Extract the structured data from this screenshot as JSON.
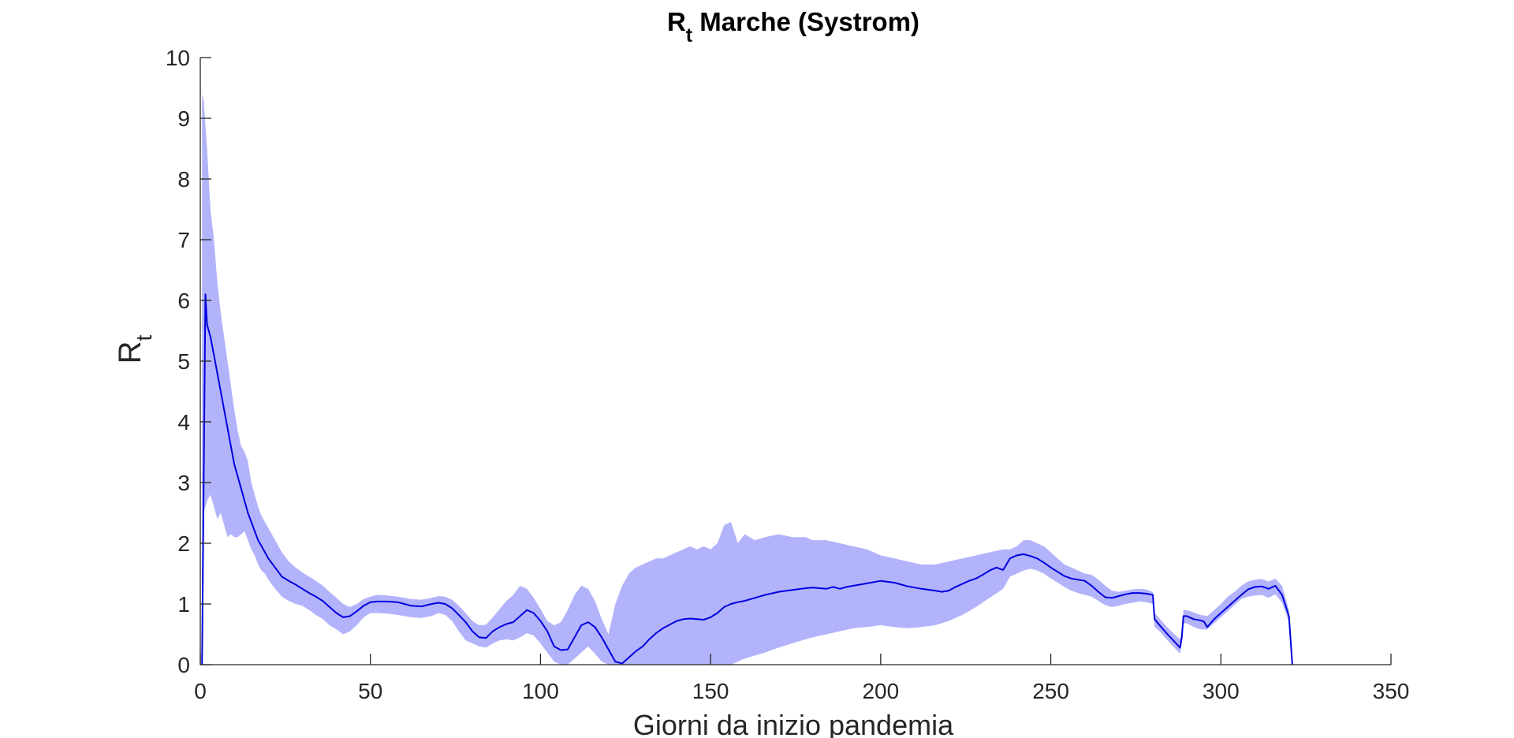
{
  "chart_data": {
    "type": "line",
    "title": {
      "main": "R",
      "sub": "t",
      "rest": " Marche (Systrom)"
    },
    "xlabel": "Giorni da inizio pandemia",
    "ylabel": {
      "main": "R",
      "sub": "t"
    },
    "xlim": [
      0,
      350
    ],
    "ylim": [
      0,
      10
    ],
    "x_ticks": [
      0,
      50,
      100,
      150,
      200,
      250,
      300,
      350
    ],
    "y_ticks": [
      0,
      1,
      2,
      3,
      4,
      5,
      6,
      7,
      8,
      9,
      10
    ],
    "grid": false,
    "colors": {
      "line": "#0000e0",
      "band": "#b3b3fb",
      "axis": "#262626"
    },
    "series": [
      {
        "x": [
          0.5,
          1.5,
          2,
          3,
          4,
          5,
          6,
          7,
          8,
          9,
          10,
          11,
          12,
          13,
          14,
          15,
          16,
          17,
          18,
          19,
          20,
          22,
          24,
          26,
          28,
          30,
          32,
          34,
          36,
          38,
          40,
          42,
          44,
          46,
          48,
          50,
          52,
          55,
          58,
          60,
          62,
          65,
          68,
          70,
          72,
          74,
          76,
          78,
          80,
          82,
          84,
          86,
          88,
          90,
          92,
          94,
          96,
          98,
          100,
          102,
          104,
          106,
          108,
          110,
          112,
          114,
          116,
          118,
          120,
          122,
          124,
          126,
          128,
          130,
          132,
          134,
          136,
          138,
          140,
          142,
          144,
          146,
          148,
          150,
          152,
          154,
          156,
          158,
          160,
          163,
          166,
          170,
          174,
          178,
          180,
          184,
          186,
          188,
          190,
          194,
          198,
          200,
          204,
          208,
          212,
          216,
          218,
          220,
          222,
          224,
          226,
          228,
          230,
          232,
          234,
          236,
          238,
          240,
          242,
          244,
          246,
          248,
          250,
          252,
          254,
          256,
          258,
          260,
          262,
          264,
          266,
          268,
          270,
          272,
          274,
          276,
          278,
          280,
          280.5,
          282,
          284,
          286,
          288,
          288.5,
          289,
          290,
          292,
          294,
          295,
          296,
          298,
          300,
          302,
          304,
          306,
          308,
          310,
          312,
          314,
          316,
          318,
          320,
          321
        ],
        "rt": [
          0,
          6.1,
          5.6,
          5.4,
          5.1,
          4.8,
          4.5,
          4.2,
          3.9,
          3.6,
          3.3,
          3.1,
          2.9,
          2.7,
          2.5,
          2.35,
          2.2,
          2.05,
          1.95,
          1.85,
          1.75,
          1.6,
          1.45,
          1.38,
          1.32,
          1.25,
          1.18,
          1.12,
          1.05,
          0.95,
          0.85,
          0.78,
          0.8,
          0.88,
          0.97,
          1.03,
          1.04,
          1.04,
          1.03,
          1.0,
          0.97,
          0.96,
          1.0,
          1.02,
          1.0,
          0.93,
          0.82,
          0.7,
          0.55,
          0.45,
          0.44,
          0.55,
          0.62,
          0.67,
          0.7,
          0.8,
          0.9,
          0.85,
          0.72,
          0.55,
          0.3,
          0.24,
          0.25,
          0.45,
          0.65,
          0.7,
          0.62,
          0.45,
          0.25,
          0.05,
          0.02,
          0.12,
          0.22,
          0.3,
          0.42,
          0.52,
          0.6,
          0.66,
          0.72,
          0.75,
          0.76,
          0.75,
          0.74,
          0.78,
          0.85,
          0.95,
          1.0,
          1.03,
          1.05,
          1.1,
          1.15,
          1.2,
          1.23,
          1.26,
          1.27,
          1.25,
          1.28,
          1.25,
          1.28,
          1.32,
          1.36,
          1.38,
          1.35,
          1.29,
          1.25,
          1.22,
          1.2,
          1.22,
          1.28,
          1.33,
          1.38,
          1.42,
          1.48,
          1.55,
          1.6,
          1.56,
          1.75,
          1.8,
          1.82,
          1.79,
          1.75,
          1.68,
          1.6,
          1.53,
          1.46,
          1.42,
          1.4,
          1.38,
          1.3,
          1.2,
          1.11,
          1.1,
          1.13,
          1.16,
          1.18,
          1.18,
          1.17,
          1.15,
          0.75,
          0.65,
          0.52,
          0.4,
          0.28,
          0.45,
          0.8,
          0.8,
          0.75,
          0.73,
          0.71,
          0.62,
          0.75,
          0.85,
          0.95,
          1.05,
          1.15,
          1.24,
          1.28,
          1.29,
          1.25,
          1.3,
          1.15,
          0.8,
          0
        ]
      }
    ],
    "band": {
      "x": [
        0.5,
        1,
        2,
        3,
        4,
        5,
        6,
        7,
        8,
        9,
        10,
        11,
        12,
        13,
        14,
        15,
        16,
        17,
        18,
        19,
        20,
        22,
        24,
        26,
        28,
        30,
        32,
        34,
        36,
        38,
        40,
        42,
        44,
        46,
        48,
        50,
        52,
        55,
        58,
        60,
        62,
        65,
        68,
        70,
        72,
        74,
        76,
        78,
        80,
        82,
        84,
        86,
        88,
        90,
        92,
        94,
        96,
        98,
        100,
        102,
        104,
        106,
        108,
        110,
        112,
        114,
        116,
        118,
        120,
        122,
        124,
        126,
        128,
        130,
        132,
        134,
        136,
        138,
        140,
        142,
        144,
        146,
        148,
        150,
        152,
        154,
        156,
        158,
        160,
        163,
        166,
        170,
        174,
        178,
        180,
        184,
        188,
        192,
        196,
        200,
        204,
        208,
        212,
        216,
        220,
        224,
        228,
        232,
        236,
        238,
        240,
        242,
        244,
        246,
        248,
        250,
        252,
        254,
        256,
        258,
        260,
        262,
        264,
        266,
        268,
        270,
        272,
        274,
        276,
        278,
        280,
        280.5,
        282,
        284,
        286,
        288,
        288.5,
        289,
        290,
        292,
        294,
        296,
        298,
        300,
        302,
        304,
        306,
        308,
        310,
        312,
        314,
        316,
        318,
        320,
        321
      ],
      "upper": [
        9.4,
        9.3,
        8.5,
        7.5,
        7.0,
        6.3,
        5.8,
        5.4,
        5.0,
        4.6,
        4.2,
        3.85,
        3.6,
        3.5,
        3.35,
        3.0,
        2.8,
        2.6,
        2.45,
        2.35,
        2.25,
        2.05,
        1.85,
        1.7,
        1.6,
        1.52,
        1.45,
        1.38,
        1.3,
        1.2,
        1.1,
        1.0,
        0.95,
        1.0,
        1.08,
        1.12,
        1.15,
        1.14,
        1.12,
        1.1,
        1.08,
        1.07,
        1.1,
        1.13,
        1.12,
        1.07,
        0.97,
        0.85,
        0.72,
        0.65,
        0.66,
        0.78,
        0.92,
        1.05,
        1.15,
        1.3,
        1.25,
        1.1,
        0.92,
        0.72,
        0.65,
        0.7,
        0.9,
        1.15,
        1.3,
        1.25,
        1.05,
        0.75,
        0.5,
        1.0,
        1.3,
        1.5,
        1.6,
        1.65,
        1.7,
        1.75,
        1.75,
        1.8,
        1.85,
        1.9,
        1.95,
        1.9,
        1.95,
        1.9,
        2.0,
        2.3,
        2.35,
        2.0,
        2.15,
        2.05,
        2.1,
        2.15,
        2.1,
        2.1,
        2.05,
        2.05,
        2.0,
        1.95,
        1.9,
        1.8,
        1.75,
        1.7,
        1.65,
        1.65,
        1.7,
        1.75,
        1.8,
        1.85,
        1.9,
        1.9,
        1.95,
        2.05,
        2.05,
        2.0,
        1.95,
        1.85,
        1.75,
        1.65,
        1.6,
        1.55,
        1.5,
        1.48,
        1.4,
        1.3,
        1.22,
        1.2,
        1.22,
        1.24,
        1.25,
        1.24,
        1.2,
        0.85,
        0.76,
        0.63,
        0.52,
        0.42,
        0.55,
        0.9,
        0.9,
        0.86,
        0.82,
        0.8,
        0.9,
        1.0,
        1.12,
        1.2,
        1.3,
        1.37,
        1.4,
        1.41,
        1.37,
        1.42,
        1.3,
        0.9,
        0
      ],
      "lower": [
        0,
        2.5,
        2.7,
        2.8,
        2.6,
        2.4,
        2.5,
        2.3,
        2.1,
        2.15,
        2.1,
        2.1,
        2.15,
        2.2,
        2.05,
        1.9,
        1.8,
        1.65,
        1.55,
        1.5,
        1.4,
        1.25,
        1.12,
        1.05,
        1.0,
        0.97,
        0.9,
        0.82,
        0.75,
        0.65,
        0.58,
        0.5,
        0.55,
        0.65,
        0.78,
        0.85,
        0.85,
        0.84,
        0.82,
        0.8,
        0.78,
        0.77,
        0.8,
        0.85,
        0.82,
        0.72,
        0.55,
        0.4,
        0.35,
        0.3,
        0.28,
        0.35,
        0.4,
        0.42,
        0.4,
        0.45,
        0.52,
        0.48,
        0.35,
        0.2,
        0.05,
        0.0,
        0.0,
        0.1,
        0.2,
        0.3,
        0.18,
        0.05,
        0.0,
        0.0,
        0.0,
        0.0,
        0.0,
        0.0,
        0.0,
        0.0,
        0.0,
        0.0,
        0.0,
        0.0,
        0.0,
        0.0,
        0.0,
        0.0,
        0.0,
        0.0,
        0.0,
        0.05,
        0.1,
        0.15,
        0.2,
        0.28,
        0.35,
        0.42,
        0.45,
        0.5,
        0.55,
        0.6,
        0.62,
        0.65,
        0.62,
        0.6,
        0.62,
        0.65,
        0.72,
        0.82,
        0.95,
        1.1,
        1.25,
        1.45,
        1.5,
        1.55,
        1.58,
        1.55,
        1.5,
        1.42,
        1.35,
        1.28,
        1.22,
        1.18,
        1.15,
        1.12,
        1.05,
        0.98,
        0.95,
        0.97,
        1.0,
        1.02,
        1.04,
        1.03,
        1.0,
        0.62,
        0.55,
        0.42,
        0.3,
        0.18,
        0.35,
        0.68,
        0.68,
        0.62,
        0.58,
        0.58,
        0.68,
        0.78,
        0.88,
        0.98,
        1.08,
        1.12,
        1.14,
        1.15,
        1.1,
        1.16,
        1.02,
        0.7,
        0
      ]
    }
  }
}
